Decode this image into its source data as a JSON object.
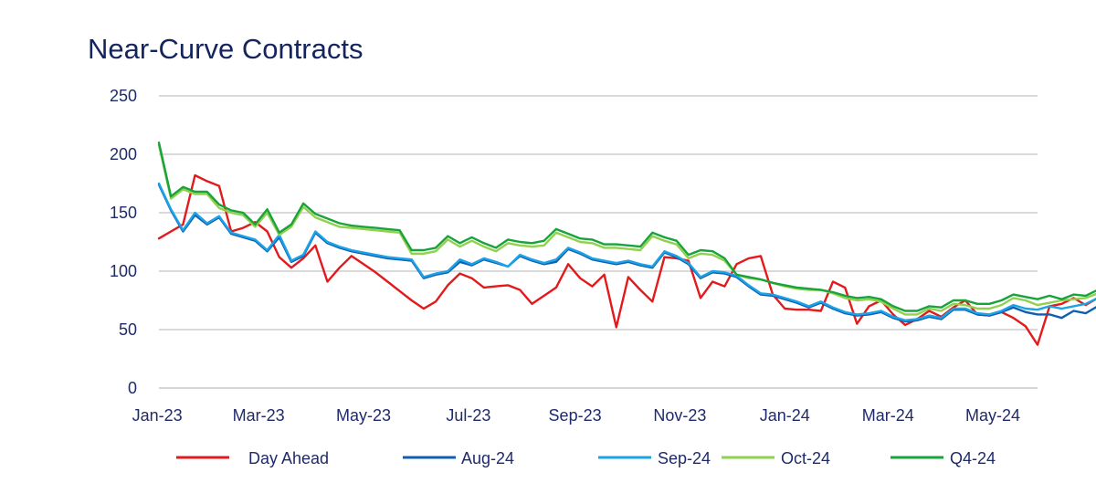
{
  "chart_data": {
    "type": "line",
    "title": "Near-Curve Contracts",
    "xlabel": "",
    "ylabel": "",
    "ylim": [
      0,
      250
    ],
    "yticks": [
      "0",
      "50",
      "100",
      "150",
      "200",
      "250"
    ],
    "xticks": [
      "Jan-23",
      "Mar-23",
      "May-23",
      "Jul-23",
      "Sep-23",
      "Nov-23",
      "Jan-24",
      "Mar-24",
      "May-24"
    ],
    "grid": "horizontal",
    "legend_position": "bottom",
    "x_start": "2023-01-02",
    "x_step_days": 7,
    "series": [
      {
        "name": "Day Ahead",
        "color": "#e31a1c",
        "values": [
          128,
          134,
          140,
          182,
          177,
          173,
          134,
          137,
          142,
          134,
          112,
          103,
          111,
          122,
          91,
          103,
          113,
          106,
          99,
          91,
          83,
          75,
          68,
          74,
          88,
          98,
          94,
          86,
          87,
          88,
          84,
          72,
          79,
          86,
          106,
          94,
          87,
          97,
          52,
          95,
          84,
          74,
          112,
          111,
          109,
          77,
          91,
          87,
          106,
          111,
          113,
          80,
          68,
          67,
          67,
          66,
          91,
          86,
          55,
          70,
          75,
          63,
          54,
          59,
          66,
          61,
          69,
          75,
          63,
          62,
          65,
          60,
          53,
          37,
          70,
          72,
          77,
          71,
          77
        ]
      },
      {
        "name": "Aug-24",
        "color": "#0f5fb0",
        "values": [
          174,
          152,
          134,
          148,
          140,
          146,
          132,
          129,
          126,
          117,
          129,
          108,
          113,
          133,
          124,
          120,
          117,
          115,
          113,
          111,
          110,
          109,
          94,
          97,
          99,
          108,
          105,
          110,
          107,
          104,
          113,
          109,
          106,
          108,
          119,
          115,
          110,
          108,
          106,
          108,
          105,
          103,
          116,
          112,
          106,
          94,
          99,
          98,
          95,
          87,
          80,
          79,
          76,
          73,
          69,
          73,
          68,
          64,
          62,
          63,
          65,
          60,
          57,
          58,
          61,
          59,
          67,
          67,
          63,
          62,
          65,
          69,
          65,
          63,
          63,
          60,
          66,
          64,
          70
        ]
      },
      {
        "name": "Sep-24",
        "color": "#1aa3e8",
        "values": [
          175,
          153,
          135,
          150,
          141,
          147,
          133,
          130,
          127,
          118,
          131,
          109,
          114,
          134,
          125,
          121,
          118,
          116,
          114,
          112,
          111,
          110,
          95,
          98,
          100,
          110,
          106,
          111,
          108,
          104,
          114,
          110,
          107,
          110,
          120,
          116,
          111,
          109,
          107,
          109,
          106,
          104,
          117,
          113,
          107,
          95,
          100,
          99,
          96,
          88,
          81,
          80,
          77,
          74,
          70,
          74,
          69,
          65,
          63,
          64,
          66,
          61,
          58,
          59,
          62,
          60,
          68,
          68,
          64,
          63,
          66,
          71,
          68,
          67,
          70,
          68,
          70,
          72,
          77
        ]
      },
      {
        "name": "Oct-24",
        "color": "#92d050",
        "values": [
          208,
          162,
          170,
          166,
          166,
          154,
          150,
          148,
          138,
          150,
          131,
          138,
          155,
          146,
          142,
          138,
          137,
          136,
          135,
          134,
          133,
          115,
          115,
          117,
          127,
          121,
          126,
          121,
          117,
          124,
          122,
          121,
          122,
          133,
          129,
          125,
          124,
          120,
          120,
          119,
          118,
          130,
          126,
          123,
          111,
          115,
          114,
          109,
          97,
          94,
          93,
          90,
          87,
          85,
          84,
          84,
          81,
          77,
          75,
          76,
          74,
          68,
          63,
          63,
          68,
          66,
          72,
          71,
          68,
          68,
          71,
          77,
          75,
          71,
          73,
          75,
          76,
          77,
          81
        ]
      },
      {
        "name": "Q4-24",
        "color": "#18a33b",
        "values": [
          210,
          164,
          172,
          168,
          168,
          157,
          152,
          150,
          140,
          153,
          133,
          140,
          158,
          149,
          145,
          141,
          139,
          138,
          137,
          136,
          135,
          118,
          118,
          120,
          130,
          124,
          129,
          124,
          120,
          127,
          125,
          124,
          126,
          136,
          132,
          128,
          127,
          123,
          123,
          122,
          121,
          133,
          129,
          126,
          114,
          118,
          117,
          111,
          97,
          95,
          93,
          90,
          88,
          86,
          85,
          84,
          82,
          79,
          77,
          78,
          76,
          70,
          66,
          66,
          70,
          69,
          75,
          75,
          72,
          72,
          75,
          80,
          78,
          76,
          79,
          76,
          80,
          79,
          84
        ]
      }
    ]
  }
}
